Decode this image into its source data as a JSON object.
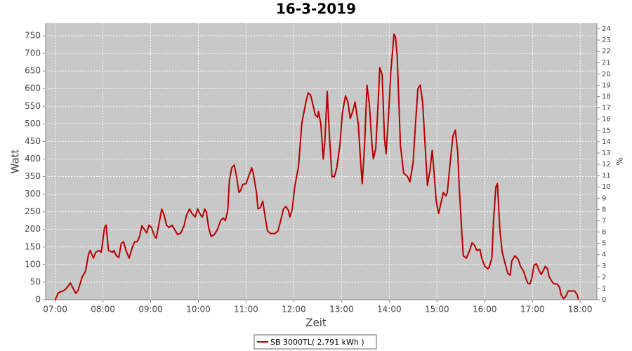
{
  "chart_data": {
    "type": "line",
    "title": "16-3-2019",
    "x_label": "Zeit",
    "y_label": "Watt",
    "y2_label": "%",
    "x": [
      "07:00",
      "07:04",
      "07:10",
      "07:14",
      "07:19",
      "07:22",
      "07:26",
      "07:29",
      "07:34",
      "07:38",
      "07:42",
      "07:44",
      "07:48",
      "07:51",
      "07:55",
      "07:58",
      "08:02",
      "08:04",
      "08:07",
      "08:12",
      "08:14",
      "08:17",
      "08:20",
      "08:23",
      "08:26",
      "08:29",
      "08:33",
      "08:37",
      "08:40",
      "08:43",
      "08:46",
      "08:49",
      "08:52",
      "08:55",
      "08:58",
      "09:01",
      "09:05",
      "09:07",
      "09:14",
      "09:17",
      "09:20",
      "09:23",
      "09:27",
      "09:30",
      "09:34",
      "09:38",
      "09:42",
      "09:45",
      "09:49",
      "09:52",
      "09:56",
      "09:59",
      "10:03",
      "10:05",
      "10:08",
      "10:10",
      "10:13",
      "10:16",
      "10:20",
      "10:24",
      "10:28",
      "10:31",
      "10:34",
      "10:37",
      "10:39",
      "10:42",
      "10:45",
      "10:48",
      "10:51",
      "10:53",
      "10:56",
      "11:00",
      "11:03",
      "11:07",
      "11:09",
      "11:13",
      "11:15",
      "11:18",
      "11:21",
      "11:24",
      "11:27",
      "11:31",
      "11:36",
      "11:40",
      "11:44",
      "11:47",
      "11:50",
      "11:53",
      "11:55",
      "11:58",
      "12:01",
      "12:06",
      "12:10",
      "12:15",
      "12:18",
      "12:21",
      "12:24",
      "12:27",
      "12:30",
      "12:31",
      "12:34",
      "12:37",
      "12:39",
      "12:42",
      "12:45",
      "12:48",
      "12:51",
      "12:54",
      "12:58",
      "13:01",
      "13:05",
      "13:08",
      "13:11",
      "13:14",
      "13:17",
      "13:21",
      "13:24",
      "13:26",
      "13:29",
      "13:32",
      "13:35",
      "13:38",
      "13:40",
      "13:43",
      "13:46",
      "13:48",
      "13:51",
      "13:54",
      "13:56",
      "13:59",
      "14:02",
      "14:06",
      "14:08",
      "14:10",
      "14:14",
      "14:18",
      "14:23",
      "14:26",
      "14:30",
      "14:33",
      "14:36",
      "14:39",
      "14:42",
      "14:46",
      "14:48",
      "14:51",
      "14:54",
      "14:56",
      "14:59",
      "15:02",
      "15:04",
      "15:08",
      "15:11",
      "15:13",
      "15:17",
      "15:20",
      "15:23",
      "15:26",
      "15:28",
      "15:31",
      "15:33",
      "15:37",
      "15:41",
      "15:44",
      "15:47",
      "15:50",
      "15:54",
      "15:56",
      "16:00",
      "16:04",
      "16:06",
      "16:09",
      "16:11",
      "16:14",
      "16:16",
      "16:19",
      "16:22",
      "16:26",
      "16:29",
      "16:32",
      "16:34",
      "16:38",
      "16:42",
      "16:45",
      "16:49",
      "16:51",
      "16:54",
      "16:57",
      "16:59",
      "17:02",
      "17:05",
      "17:08",
      "17:11",
      "17:13",
      "17:16",
      "17:19",
      "17:21",
      "17:25",
      "17:27",
      "17:31",
      "17:34",
      "17:36",
      "17:39",
      "17:42",
      "17:45",
      "17:49",
      "17:53",
      "17:56",
      "17:58"
    ],
    "series": [
      {
        "name": "SB 3000TL( 2,791 kWh )",
        "color": "#b80000",
        "values": [
          0,
          20,
          25,
          32,
          48,
          35,
          18,
          28,
          65,
          80,
          130,
          140,
          118,
          135,
          140,
          135,
          205,
          212,
          140,
          135,
          140,
          125,
          120,
          160,
          165,
          140,
          118,
          150,
          165,
          165,
          180,
          210,
          200,
          190,
          212,
          205,
          180,
          175,
          258,
          240,
          212,
          205,
          212,
          200,
          185,
          190,
          210,
          240,
          258,
          245,
          235,
          258,
          240,
          235,
          258,
          250,
          205,
          180,
          185,
          200,
          225,
          232,
          225,
          255,
          340,
          375,
          383,
          350,
          305,
          310,
          328,
          330,
          350,
          375,
          360,
          305,
          258,
          262,
          280,
          235,
          195,
          188,
          188,
          195,
          230,
          258,
          265,
          255,
          235,
          258,
          320,
          380,
          500,
          560,
          588,
          582,
          555,
          525,
          518,
          535,
          500,
          400,
          450,
          592,
          455,
          350,
          350,
          375,
          440,
          530,
          580,
          562,
          515,
          535,
          562,
          500,
          390,
          330,
          440,
          610,
          555,
          450,
          400,
          430,
          560,
          660,
          640,
          455,
          415,
          520,
          650,
          755,
          745,
          690,
          440,
          360,
          350,
          335,
          390,
          500,
          600,
          610,
          560,
          400,
          325,
          365,
          425,
          370,
          280,
          245,
          265,
          305,
          295,
          305,
          400,
          465,
          482,
          420,
          320,
          200,
          125,
          118,
          140,
          162,
          155,
          140,
          143,
          120,
          95,
          88,
          95,
          120,
          220,
          320,
          330,
          200,
          135,
          100,
          75,
          70,
          110,
          125,
          115,
          95,
          80,
          65,
          47,
          45,
          60,
          98,
          102,
          85,
          72,
          80,
          95,
          88,
          65,
          50,
          45,
          45,
          35,
          15,
          3,
          10,
          25,
          25,
          25,
          15,
          0
        ]
      }
    ],
    "xlim": [
      "06:48",
      "18:21"
    ],
    "xticks": [
      "07:00",
      "08:00",
      "09:00",
      "10:00",
      "11:00",
      "12:00",
      "13:00",
      "14:00",
      "15:00",
      "16:00",
      "17:00",
      "18:00"
    ],
    "ylim": [
      0,
      786
    ],
    "yticks": [
      0,
      50,
      100,
      150,
      200,
      250,
      300,
      350,
      400,
      450,
      500,
      550,
      600,
      650,
      700,
      750
    ],
    "y2lim": [
      0,
      24.5
    ],
    "y2ticks": [
      0,
      1,
      2,
      3,
      4,
      5,
      6,
      7,
      8,
      9,
      10,
      11,
      12,
      13,
      14,
      15,
      16,
      17,
      18,
      19,
      20,
      21,
      22,
      23,
      24
    ],
    "grid": true
  }
}
